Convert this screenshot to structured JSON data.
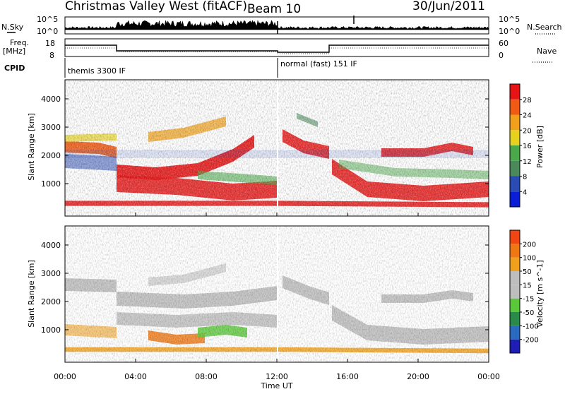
{
  "header": {
    "title": "Christmas Valley West (fitACF)",
    "beam": "Beam 10",
    "date": "30/Jun/2011"
  },
  "top_panels": {
    "nsky_label": "N.Sky",
    "nsearch_label": "N.Search",
    "nsky_ticks": [
      "10^5",
      "10^0"
    ],
    "nsearch_ticks": [
      "10^5",
      "10^0"
    ],
    "freq_label_1": "Freq.",
    "freq_label_2": "[MHz]",
    "freq_ticks": [
      "18",
      "8"
    ],
    "nave_label": "Nave",
    "nave_ticks": [
      "60",
      "0"
    ],
    "cpid_label": "CPID",
    "cpid_segments": [
      "themis 3300 IF",
      "normal (fast) 151 IF"
    ]
  },
  "colors": {
    "power": [
      "#0a1ed8",
      "#2a4ab4",
      "#4a8a5a",
      "#4aa84a",
      "#e6d21e",
      "#f0a01a",
      "#f05a14",
      "#e61414"
    ],
    "velocity": [
      "#1e1eb4",
      "#2a6abf",
      "#2a8a4a",
      "#5ac83a",
      "#bebebe",
      "#bebebe",
      "#f0a01a",
      "#f07814",
      "#f04614",
      "#e61414"
    ]
  },
  "chart_data": [
    {
      "type": "heatmap",
      "panel": "power",
      "xlabel": "",
      "ylabel": "Slant Range [km]",
      "y_ticks": [
        "4000",
        "3000",
        "2000",
        "1000"
      ],
      "colorbar_label": "Power [dB]",
      "colorbar_ticks": [
        "28",
        "24",
        "20",
        "16",
        "12",
        "8",
        "4"
      ],
      "colorbar_range": [
        0,
        32
      ]
    },
    {
      "type": "heatmap",
      "panel": "velocity",
      "xlabel": "Time UT",
      "ylabel": "Slant Range [km]",
      "y_ticks": [
        "4000",
        "3000",
        "2000",
        "1000"
      ],
      "x_ticks": [
        "00:00",
        "04:00",
        "08:00",
        "12:00",
        "16:00",
        "20:00",
        "00:00"
      ],
      "colorbar_label": "Velocity [m s^-1]",
      "colorbar_ticks": [
        "200",
        "100",
        "50",
        "15",
        "-15",
        "-50",
        "-100",
        "-200"
      ]
    }
  ]
}
